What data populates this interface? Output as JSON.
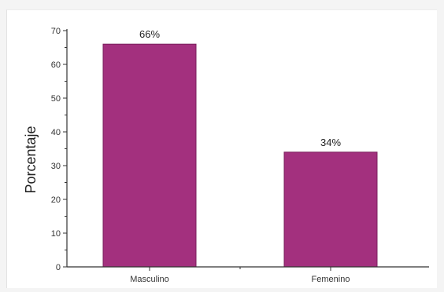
{
  "chart_data": {
    "type": "bar",
    "categories": [
      "Masculino",
      "Femenino"
    ],
    "values": [
      66,
      34
    ],
    "data_labels": [
      "66%",
      "34%"
    ],
    "title": "",
    "xlabel": "",
    "ylabel": "Porcentaje",
    "ylim": [
      0,
      70
    ],
    "yticks": [
      0,
      10,
      20,
      30,
      40,
      50,
      60,
      70
    ],
    "grid": false,
    "legend": "none",
    "bar_color": "#a3307e",
    "bar_edge_color": "#7a1f5c",
    "axis_color": "#333333"
  }
}
